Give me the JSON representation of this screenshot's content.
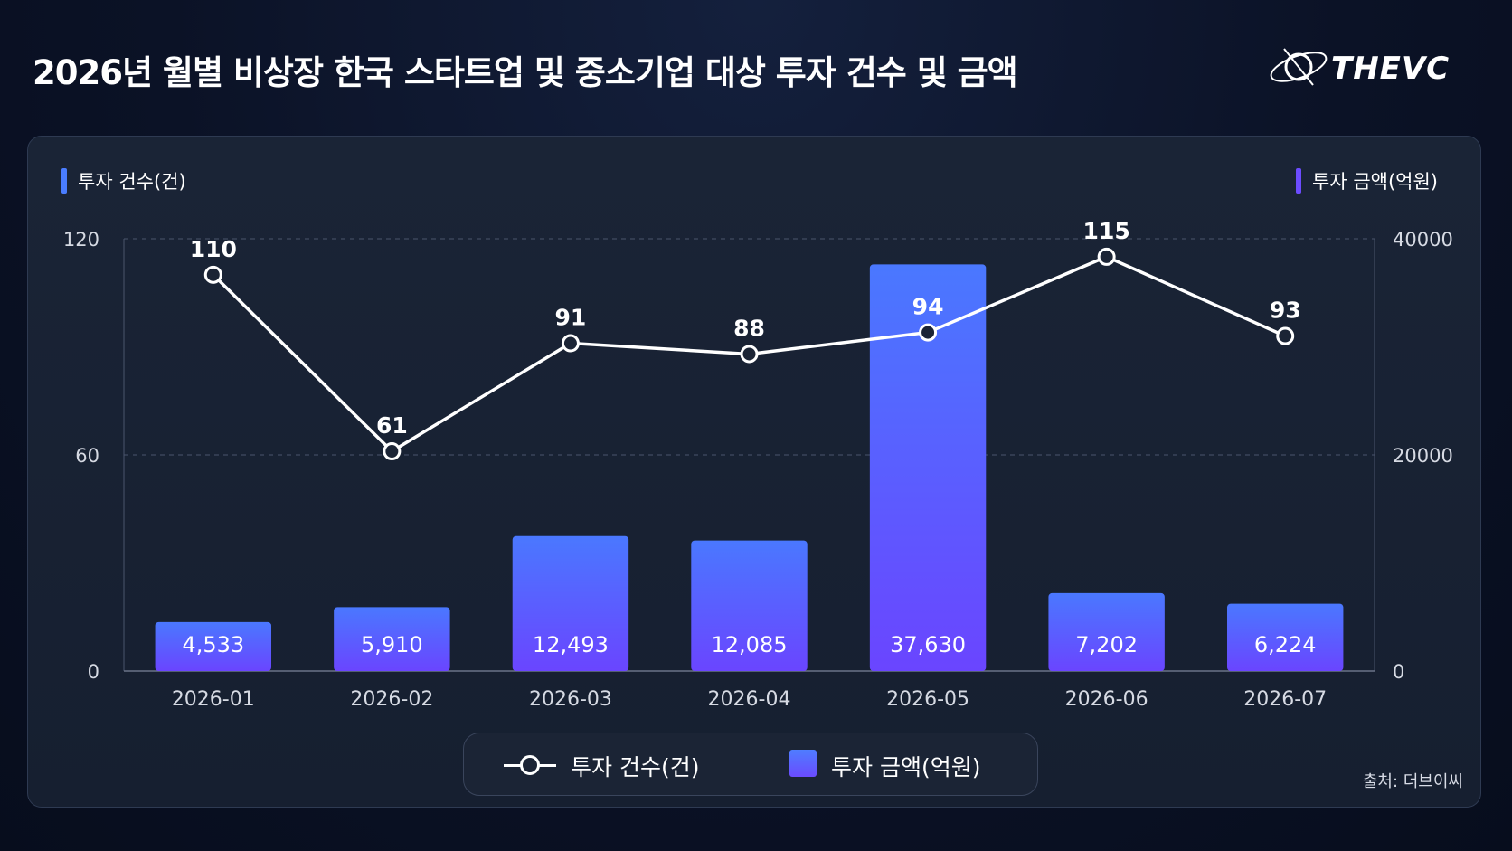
{
  "title": "2026년 월별 비상장 한국 스타트업 및 중소기업 대상 투자 건수 및 금액",
  "logo": {
    "text": "THEVC"
  },
  "source": "출처: 더브이씨",
  "colors": {
    "line": "#ffffff",
    "bar_top": "#4a78ff",
    "bar_bottom": "#6a45ff",
    "left_tag": "#4a7dff",
    "right_tag": "#6c4cff"
  },
  "chart_data": {
    "type": "bar+line",
    "categories": [
      "2026-01",
      "2026-02",
      "2026-03",
      "2026-04",
      "2026-05",
      "2026-06",
      "2026-07"
    ],
    "series": [
      {
        "name": "투자 건수(건)",
        "type": "line",
        "axis": "left",
        "values": [
          110,
          61,
          91,
          88,
          94,
          115,
          93
        ],
        "labels": [
          "110",
          "61",
          "91",
          "88",
          "94",
          "115",
          "93"
        ]
      },
      {
        "name": "투자 금액(억원)",
        "type": "bar",
        "axis": "right",
        "values": [
          4533,
          5910,
          12493,
          12085,
          37630,
          7202,
          6224
        ],
        "labels": [
          "4,533",
          "5,910",
          "12,493",
          "12,085",
          "37,630",
          "7,202",
          "6,224"
        ]
      }
    ],
    "y_left": {
      "label": "투자 건수(건)",
      "range": [
        0,
        120
      ],
      "ticks": [
        "0",
        "60",
        "120"
      ]
    },
    "y_right": {
      "label": "투자 금액(억원)",
      "range": [
        0,
        40000
      ],
      "ticks": [
        "0",
        "20000",
        "40000"
      ]
    },
    "grid": true,
    "legend": {
      "placement": "bottom",
      "items": [
        "투자 건수(건)",
        "투자 금액(억원)"
      ]
    }
  }
}
